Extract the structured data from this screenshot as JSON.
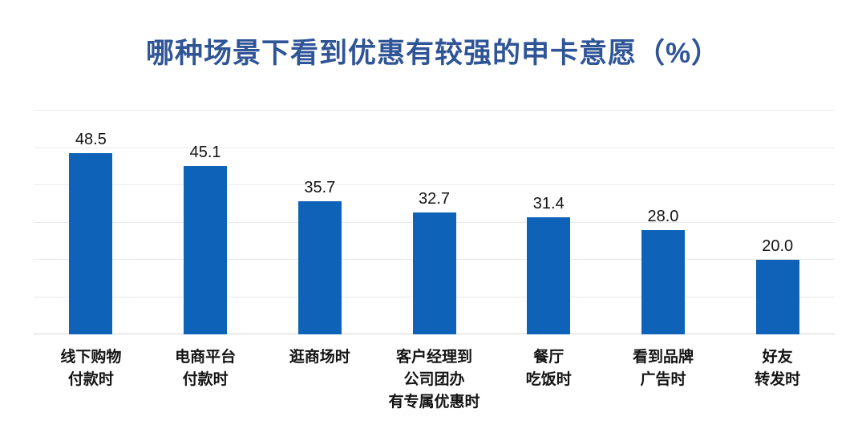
{
  "title": {
    "text": "哪种场景下看到优惠有较强的申卡意愿（%）"
  },
  "chart_data": {
    "type": "bar",
    "title": "哪种场景下看到优惠有较强的申卡意愿（%）",
    "categories": [
      "线下购物\n付款时",
      "电商平台\n付款时",
      "逛商场时",
      "客户经理到\n公司团办\n有专属优惠时",
      "餐厅\n吃饭时",
      "看到品牌\n广告时",
      "好友\n转发时"
    ],
    "values": [
      48.5,
      45.1,
      35.7,
      32.7,
      31.4,
      28.0,
      20.0
    ],
    "value_labels": [
      "48.5",
      "45.1",
      "35.7",
      "32.7",
      "31.4",
      "28.0",
      "20.0"
    ],
    "xlabel": "",
    "ylabel": "",
    "ylim": [
      0,
      60
    ],
    "grid_step": 10,
    "grid": true,
    "legend": false,
    "colors": {
      "bar": "#0E63B8",
      "title": "#2F5597",
      "gridline": "#EAEAEA",
      "baseline": "#D5D5D5",
      "label_text": "#141414"
    }
  }
}
